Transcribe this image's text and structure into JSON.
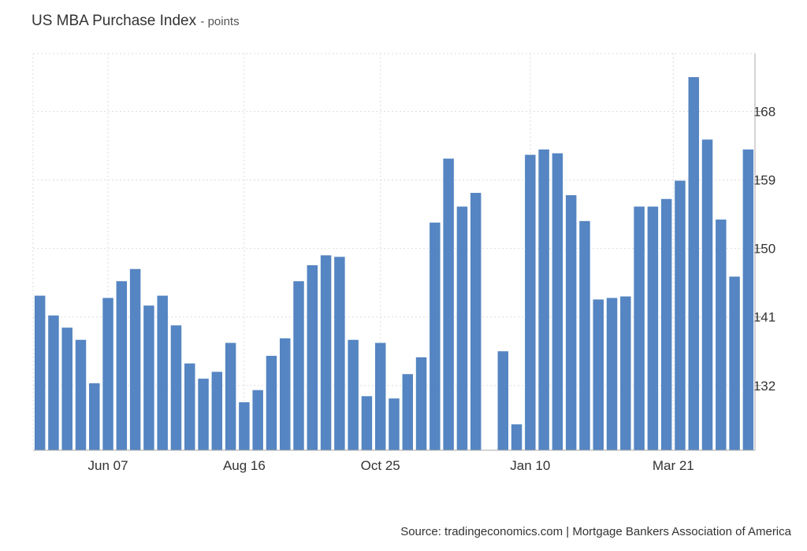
{
  "chart_data": {
    "type": "bar",
    "title": "US MBA Purchase Index",
    "unit": "points",
    "color": "#5585c2",
    "ylim": [
      123.5,
      175.6
    ],
    "yticks": [
      132,
      141,
      150,
      159,
      168
    ],
    "xtick_labels": [
      "Jun 07",
      "Aug 16",
      "Oct 25",
      "Jan 10",
      "Mar 21"
    ],
    "xtick_slots": [
      5.5,
      15.5,
      25.5,
      36.5,
      47
    ],
    "slot_count": 53,
    "values": [
      143.8,
      141.2,
      139.6,
      138.0,
      132.3,
      143.5,
      145.7,
      147.3,
      142.5,
      143.8,
      139.9,
      134.9,
      132.9,
      133.8,
      137.6,
      129.8,
      131.4,
      135.9,
      138.2,
      145.7,
      147.8,
      149.1,
      148.9,
      138.0,
      130.6,
      137.6,
      130.3,
      133.5,
      135.7,
      153.4,
      161.8,
      155.5,
      157.3,
      null,
      136.5,
      126.9,
      162.3,
      163.0,
      162.5,
      157.0,
      153.6,
      143.3,
      143.5,
      143.7,
      155.5,
      155.5,
      156.5,
      158.9,
      172.5,
      164.3,
      153.8,
      146.3,
      163.0
    ]
  },
  "source": "Source: tradingeconomics.com | Mortgage Bankers Association of America"
}
